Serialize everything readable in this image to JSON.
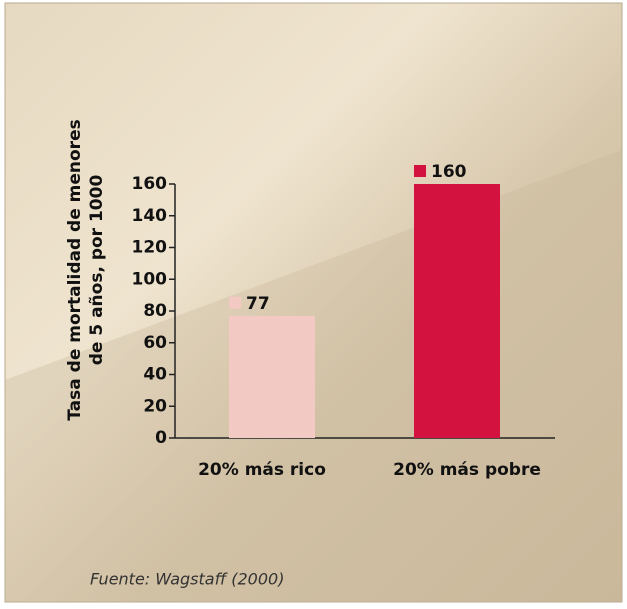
{
  "chart_data": {
    "type": "bar",
    "ylabel": [
      "Tasa de mortalidad de menores",
      "de 5 años, por 1000"
    ],
    "categories": [
      "20% más rico",
      "20% más pobre"
    ],
    "values": [
      77,
      160
    ],
    "colors": [
      "#f3c9c3",
      "#d3123f"
    ],
    "ylim": [
      0,
      160
    ],
    "yticks": [
      0,
      20,
      40,
      60,
      80,
      100,
      120,
      140,
      160
    ],
    "source": "Fuente: Wagstaff (2000)"
  }
}
